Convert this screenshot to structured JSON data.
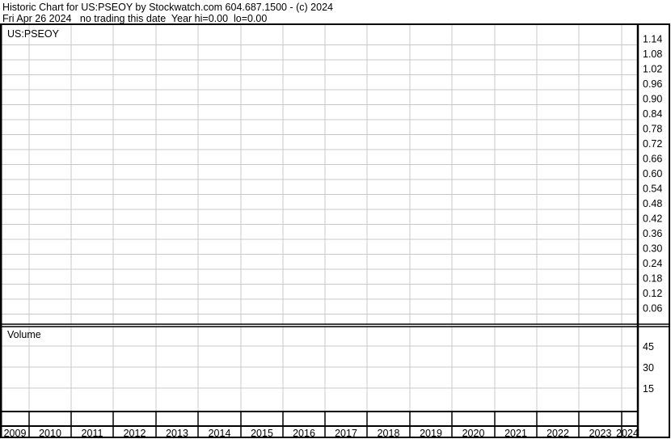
{
  "header": {
    "line1": "Historic Chart for US:PSEOY by Stockwatch.com 604.687.1500 - (c) 2024",
    "line2": "Fri Apr 26 2024   no trading this date  Year hi=0.00  lo=0.00"
  },
  "chart_data": [
    {
      "type": "line",
      "title": "US:PSEOY",
      "x_tick_labels": [
        "2009",
        "2010",
        "2011",
        "2012",
        "2013",
        "2014",
        "2015",
        "2016",
        "2017",
        "2018",
        "2019",
        "2020",
        "2021",
        "2022",
        "2023",
        "2024"
      ],
      "y_tick_labels": [
        "1.14",
        "1.08",
        "1.02",
        "0.96",
        "0.90",
        "0.84",
        "0.78",
        "0.72",
        "0.66",
        "0.60",
        "0.54",
        "0.48",
        "0.42",
        "0.36",
        "0.30",
        "0.24",
        "0.18",
        "0.12",
        "0.06"
      ],
      "ylim": [
        0.06,
        1.14
      ],
      "grid": true,
      "series": []
    },
    {
      "type": "bar",
      "title": "Volume",
      "y_tick_labels": [
        "45",
        "30",
        "15"
      ],
      "ylim": [
        15,
        45
      ],
      "grid": true,
      "series": []
    }
  ],
  "colors": {
    "grid": "#c8c8c8",
    "axis": "#000000",
    "background": "#ffffff"
  }
}
